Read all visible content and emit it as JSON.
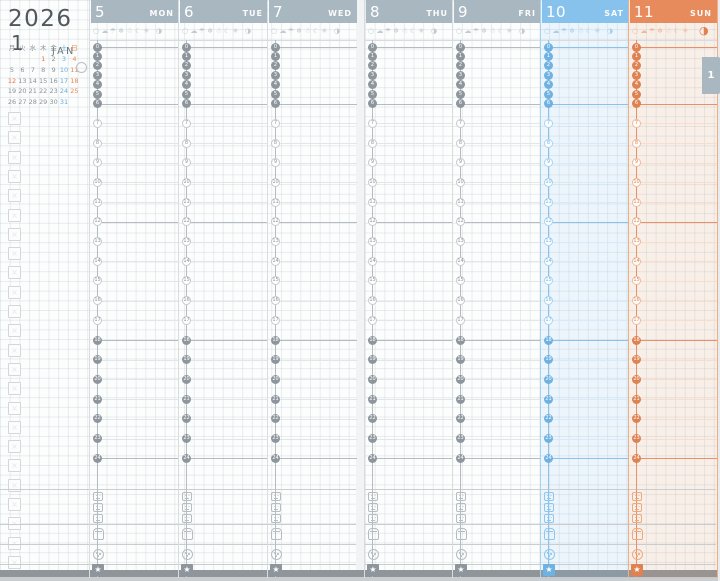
{
  "planner": {
    "year": "2026",
    "month_number": "1",
    "month_abbr": "JAN",
    "tab_label": "1",
    "mini_calendar": {
      "weekday_headers": [
        {
          "label": "月",
          "c": "n"
        },
        {
          "label": "火",
          "c": "n"
        },
        {
          "label": "水",
          "c": "n"
        },
        {
          "label": "木",
          "c": "n"
        },
        {
          "label": "金",
          "c": "n"
        },
        {
          "label": "土",
          "c": "sat"
        },
        {
          "label": "日",
          "c": "sun"
        }
      ],
      "weeks": [
        [
          {
            "t": "",
            "c": "n"
          },
          {
            "t": "",
            "c": "n"
          },
          {
            "t": "",
            "c": "n"
          },
          {
            "t": "1",
            "c": "hol"
          },
          {
            "t": "2",
            "c": "n"
          },
          {
            "t": "3",
            "c": "sat"
          },
          {
            "t": "4",
            "c": "sun"
          }
        ],
        [
          {
            "t": "5",
            "c": "n"
          },
          {
            "t": "6",
            "c": "n"
          },
          {
            "t": "7",
            "c": "n"
          },
          {
            "t": "8",
            "c": "n"
          },
          {
            "t": "9",
            "c": "n"
          },
          {
            "t": "10",
            "c": "sat"
          },
          {
            "t": "11",
            "c": "sun"
          }
        ],
        [
          {
            "t": "12",
            "c": "hol"
          },
          {
            "t": "13",
            "c": "n"
          },
          {
            "t": "14",
            "c": "n"
          },
          {
            "t": "15",
            "c": "n"
          },
          {
            "t": "16",
            "c": "n"
          },
          {
            "t": "17",
            "c": "sat"
          },
          {
            "t": "18",
            "c": "sun"
          }
        ],
        [
          {
            "t": "19",
            "c": "n"
          },
          {
            "t": "20",
            "c": "n"
          },
          {
            "t": "21",
            "c": "n"
          },
          {
            "t": "22",
            "c": "n"
          },
          {
            "t": "23",
            "c": "n"
          },
          {
            "t": "24",
            "c": "sat"
          },
          {
            "t": "25",
            "c": "sun"
          }
        ],
        [
          {
            "t": "26",
            "c": "n"
          },
          {
            "t": "27",
            "c": "n"
          },
          {
            "t": "28",
            "c": "n"
          },
          {
            "t": "29",
            "c": "n"
          },
          {
            "t": "30",
            "c": "n"
          },
          {
            "t": "31",
            "c": "sat"
          },
          {
            "t": "",
            "c": "n"
          }
        ]
      ],
      "current_week_marker_row": 2
    },
    "days": [
      {
        "date": "5",
        "weekday": "MON",
        "type": "weekday"
      },
      {
        "date": "6",
        "weekday": "TUE",
        "type": "weekday"
      },
      {
        "date": "7",
        "weekday": "WED",
        "type": "weekday"
      },
      {
        "date": "8",
        "weekday": "THU",
        "type": "weekday"
      },
      {
        "date": "9",
        "weekday": "FRI",
        "type": "weekday"
      },
      {
        "date": "10",
        "weekday": "SAT",
        "type": "saturday"
      },
      {
        "date": "11",
        "weekday": "SUN",
        "type": "sunday",
        "moon_large": true
      }
    ],
    "hour_labels": [
      0,
      1,
      2,
      3,
      4,
      5,
      6,
      7,
      8,
      9,
      10,
      11,
      12,
      13,
      14,
      15,
      16,
      17,
      18,
      19,
      20,
      21,
      22,
      23,
      24
    ],
    "weather_icons": [
      {
        "name": "sunny-icon",
        "glyph": "○"
      },
      {
        "name": "cloudy-icon",
        "glyph": "☁"
      },
      {
        "name": "rain-icon",
        "glyph": "☂"
      },
      {
        "name": "snow-icon",
        "glyph": "❄"
      },
      {
        "name": "snowman-icon",
        "glyph": "☃"
      },
      {
        "name": "crescent-icon",
        "glyph": "☾"
      },
      {
        "name": "snowflake-icon",
        "glyph": "✳"
      }
    ],
    "moon_icon": {
      "name": "moon-phase-icon",
      "glyph": "◑"
    },
    "bottom_track": {
      "meal_icons": [
        "meal-morning-icon",
        "meal-noon-icon",
        "meal-evening-icon"
      ],
      "bento_icon": "bento-icon",
      "medicine_icon": "medicine-icon",
      "star_icon": "star-icon",
      "star_glyph": "★"
    },
    "checklist": {
      "count": 24
    },
    "colors": {
      "weekday": {
        "header": "#a9b7c0",
        "accent": "#8e969d",
        "open_border": "#c6cbcf",
        "line": "#b4bbc1",
        "light_line": "#e3e6e8",
        "track": "#b4bbc1",
        "icon": "#b6bcc1",
        "weather": "#c3c9cd",
        "col_border": "#dadde0",
        "tint": "rgba(0,0,0,0)"
      },
      "saturday": {
        "header": "#87c2ec",
        "accent": "#6fb2e2",
        "open_border": "#abd4f2",
        "line": "#8ac2ec",
        "light_line": "#d8eaf8",
        "track": "#8ac2ec",
        "icon": "#8ec6ee",
        "weather": "#a5cff2",
        "col_border": "#a8d2f1",
        "tint": "rgba(134,195,236,0.13)"
      },
      "sunday": {
        "header": "#e78a5c",
        "accent": "#de8251",
        "open_border": "#f2bb9b",
        "line": "#e69169",
        "light_line": "#f7ddcd",
        "track": "#e69169",
        "icon": "#edaa7d",
        "weather": "#f0b797",
        "col_border": "#f0ae87",
        "tint": "rgba(233,143,94,0.12)"
      },
      "holiday_text": "#ea7340",
      "calendar_text": "#8a9298",
      "weekend_sat_text": "#64aede",
      "weekend_sun_text": "#ea8a4e",
      "title_text": "#51585d",
      "tab_bg": "#a9b7c0",
      "edge_shadow": "#8f9599"
    }
  }
}
